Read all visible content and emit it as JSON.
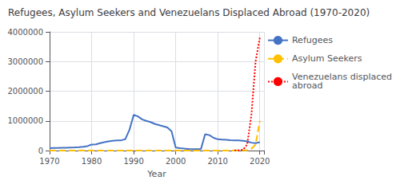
{
  "chart_data": {
    "type": "line",
    "title": "Refugees, Asylum Seekers and Venezuelans Displaced Abroad (1970-2020)",
    "xlabel": "Year",
    "x": [
      1970,
      1971,
      1972,
      1973,
      1974,
      1975,
      1976,
      1977,
      1978,
      1979,
      1980,
      1981,
      1982,
      1983,
      1984,
      1985,
      1986,
      1987,
      1988,
      1989,
      1990,
      1991,
      1992,
      1993,
      1994,
      1995,
      1996,
      1997,
      1998,
      1999,
      2000,
      2001,
      2002,
      2003,
      2004,
      2005,
      2006,
      2007,
      2008,
      2009,
      2010,
      2011,
      2012,
      2013,
      2014,
      2015,
      2016,
      2017,
      2018,
      2019,
      2020
    ],
    "series": [
      {
        "name": "Refugees",
        "color": "#4472C4",
        "line_style": "solid",
        "values": [
          80000,
          85000,
          90000,
          95000,
          95000,
          100000,
          105000,
          115000,
          130000,
          150000,
          200000,
          210000,
          250000,
          280000,
          310000,
          330000,
          340000,
          345000,
          380000,
          700000,
          1200000,
          1150000,
          1050000,
          1000000,
          960000,
          900000,
          860000,
          820000,
          780000,
          650000,
          100000,
          80000,
          65000,
          55000,
          50000,
          45000,
          50000,
          550000,
          520000,
          430000,
          380000,
          370000,
          360000,
          350000,
          345000,
          340000,
          330000,
          310000,
          265000,
          250000,
          280000
        ]
      },
      {
        "name": "Asylum Seekers",
        "color": "#FFC000",
        "line_style": "dashed",
        "values": [
          3000,
          3000,
          3000,
          3000,
          3000,
          3000,
          3000,
          3000,
          3000,
          3000,
          3000,
          3000,
          3000,
          3000,
          3000,
          3000,
          3000,
          3000,
          3000,
          3000,
          3000,
          3000,
          3000,
          3000,
          3000,
          3000,
          3000,
          3000,
          3000,
          3000,
          3000,
          3000,
          3000,
          3000,
          3000,
          3000,
          3000,
          3000,
          3000,
          3000,
          3000,
          3000,
          3000,
          3000,
          3000,
          3000,
          5000,
          10000,
          60000,
          200000,
          1000000
        ]
      },
      {
        "name": "Venezuelans displaced\nabroad",
        "color": "#FF0000",
        "line_style": "dotted",
        "values": [
          null,
          null,
          null,
          null,
          null,
          null,
          null,
          null,
          null,
          null,
          null,
          null,
          null,
          null,
          null,
          null,
          null,
          null,
          null,
          null,
          null,
          null,
          null,
          null,
          null,
          null,
          null,
          null,
          null,
          null,
          null,
          null,
          null,
          null,
          null,
          null,
          null,
          null,
          null,
          null,
          null,
          null,
          null,
          null,
          5000,
          10000,
          30000,
          200000,
          1200000,
          3000000,
          3800000
        ]
      }
    ],
    "xlim": [
      1970,
      2021
    ],
    "xticks": [
      1970,
      1980,
      1990,
      2000,
      2010,
      2020
    ],
    "ylim": [
      0,
      4000000
    ],
    "yticks": [
      0,
      1000000,
      2000000,
      3000000,
      4000000
    ],
    "grid": true,
    "legend": "right"
  }
}
